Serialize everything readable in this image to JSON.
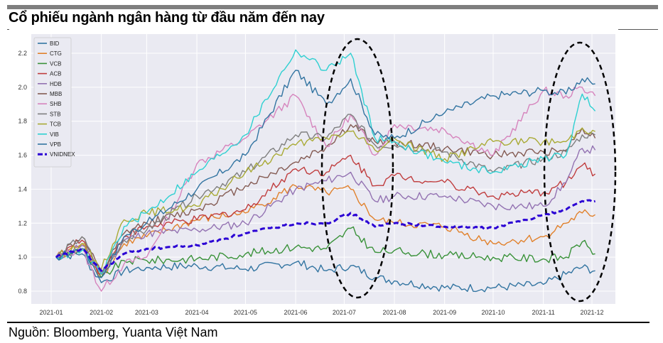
{
  "header": {
    "title": "Cổ phiếu ngành ngân hàng từ đầu năm đến nay"
  },
  "footer": {
    "source": "Nguồn: Bloomberg, Yuanta Việt Nam"
  },
  "chart_data": {
    "type": "line",
    "title": "Cổ phiếu ngành ngân hàng từ đầu năm đến nay",
    "xlabel": "",
    "ylabel": "",
    "x": [
      "2021-01",
      "2021-02",
      "2021-03",
      "2021-04",
      "2021-05",
      "2021-06",
      "2021-07",
      "2021-08",
      "2021-09",
      "2021-10",
      "2021-11",
      "2021-12"
    ],
    "x_points": [
      "2021-01-04",
      "2021-01-20",
      "2021-02-01",
      "2021-02-15",
      "2021-03-01",
      "2021-04-01",
      "2021-05-01",
      "2021-06-01",
      "2021-06-20",
      "2021-07-05",
      "2021-07-20",
      "2021-08-01",
      "2021-09-01",
      "2021-10-01",
      "2021-11-01",
      "2021-11-15",
      "2021-11-25",
      "2021-12-03"
    ],
    "ylim": [
      0.75,
      2.3
    ],
    "yticks": [
      0.8,
      1.0,
      1.2,
      1.4,
      1.6,
      1.8,
      2.0,
      2.2
    ],
    "grid": true,
    "legend_position": "upper left",
    "series": [
      {
        "name": "BID",
        "color": "#3274a1",
        "values": [
          1.0,
          1.02,
          0.85,
          0.92,
          0.94,
          0.95,
          0.93,
          0.97,
          0.92,
          0.95,
          0.88,
          0.86,
          0.82,
          0.82,
          0.84,
          0.9,
          0.94,
          0.92
        ]
      },
      {
        "name": "CTG",
        "color": "#e1812c",
        "values": [
          1.0,
          1.08,
          0.88,
          1.08,
          1.12,
          1.22,
          1.26,
          1.42,
          1.38,
          1.4,
          1.22,
          1.2,
          1.18,
          1.08,
          1.12,
          1.2,
          1.26,
          1.25
        ]
      },
      {
        "name": "VCB",
        "color": "#3a923a",
        "values": [
          1.0,
          1.05,
          0.88,
          0.98,
          0.98,
          0.99,
          1.02,
          1.06,
          1.05,
          1.17,
          1.03,
          1.04,
          1.01,
          1.0,
          0.99,
          1.0,
          1.09,
          1.02
        ]
      },
      {
        "name": "ACB",
        "color": "#c03d3e",
        "values": [
          1.0,
          1.1,
          0.9,
          1.12,
          1.18,
          1.22,
          1.28,
          1.52,
          1.5,
          1.6,
          1.42,
          1.48,
          1.44,
          1.36,
          1.38,
          1.44,
          1.54,
          1.49
        ]
      },
      {
        "name": "HDB",
        "color": "#9372b2",
        "values": [
          1.0,
          1.07,
          0.9,
          1.1,
          1.14,
          1.16,
          1.2,
          1.4,
          1.45,
          1.5,
          1.33,
          1.36,
          1.36,
          1.3,
          1.3,
          1.44,
          1.64,
          1.63
        ]
      },
      {
        "name": "MBB",
        "color": "#845b53",
        "values": [
          1.0,
          1.12,
          0.9,
          1.14,
          1.2,
          1.28,
          1.42,
          1.56,
          1.65,
          1.78,
          1.68,
          1.68,
          1.64,
          1.6,
          1.62,
          1.63,
          1.76,
          1.7
        ]
      },
      {
        "name": "SHB",
        "color": "#d684bd",
        "values": [
          1.0,
          1.05,
          0.8,
          0.96,
          1.0,
          1.55,
          1.7,
          1.95,
          1.65,
          1.84,
          1.6,
          1.78,
          1.75,
          1.6,
          1.98,
          1.95,
          2.0,
          1.95
        ]
      },
      {
        "name": "STB",
        "color": "#7f7f7f",
        "values": [
          1.0,
          1.12,
          0.9,
          1.1,
          1.16,
          1.36,
          1.5,
          1.72,
          1.7,
          1.84,
          1.66,
          1.66,
          1.62,
          1.5,
          1.58,
          1.62,
          1.72,
          1.72
        ]
      },
      {
        "name": "TCB",
        "color": "#a9aa35",
        "values": [
          1.0,
          1.08,
          0.93,
          1.22,
          1.26,
          1.3,
          1.5,
          1.66,
          1.7,
          1.74,
          1.63,
          1.7,
          1.58,
          1.68,
          1.68,
          1.68,
          1.76,
          1.74
        ]
      },
      {
        "name": "VIB",
        "color": "#2ed0d1",
        "values": [
          1.0,
          1.04,
          0.9,
          1.18,
          1.26,
          1.5,
          1.72,
          2.22,
          2.1,
          2.2,
          1.7,
          1.68,
          1.56,
          1.5,
          1.58,
          1.6,
          1.96,
          1.86
        ]
      },
      {
        "name": "VPB",
        "color": "#3274a1",
        "values": [
          1.0,
          1.05,
          0.88,
          1.12,
          1.2,
          1.4,
          1.6,
          2.1,
          1.9,
          2.05,
          1.72,
          1.7,
          1.85,
          1.95,
          1.98,
          1.96,
          2.05,
          2.02
        ]
      },
      {
        "name": "VNIDNEX",
        "color": "#2a00d4",
        "style": "dashed",
        "values": [
          1.0,
          1.05,
          0.92,
          1.02,
          1.05,
          1.07,
          1.14,
          1.2,
          1.2,
          1.26,
          1.18,
          1.2,
          1.18,
          1.17,
          1.25,
          1.28,
          1.33,
          1.33
        ]
      }
    ],
    "annotations": [
      {
        "type": "dashed-ellipse",
        "around": "2021-07",
        "label": ""
      },
      {
        "type": "dashed-ellipse",
        "around": "2021-11/2021-12",
        "label": ""
      }
    ]
  }
}
